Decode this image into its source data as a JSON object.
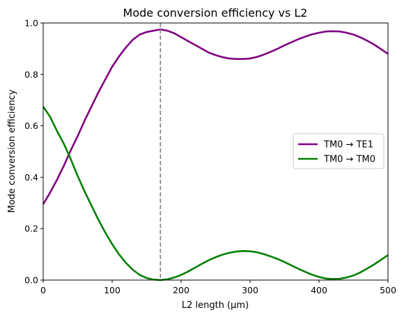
{
  "chart_data": {
    "type": "line",
    "title": "Mode conversion efficiency vs L2",
    "xlabel": "L2 length (μm)",
    "ylabel": "Mode conversion efficiency",
    "xlim": [
      0,
      500
    ],
    "ylim": [
      0,
      1.0
    ],
    "xticks": [
      "0",
      "100",
      "200",
      "300",
      "400",
      "500"
    ],
    "yticks": [
      "0.0",
      "0.2",
      "0.4",
      "0.6",
      "0.8",
      "1.0"
    ],
    "grid": false,
    "legend_position": "center-right",
    "vline": {
      "x": 170,
      "color": "#808080",
      "style": "dashed"
    },
    "series": [
      {
        "name": "TM0 → TE1",
        "color": "#800080",
        "x": [
          0,
          10,
          20,
          30,
          40,
          50,
          60,
          70,
          80,
          90,
          100,
          110,
          120,
          130,
          140,
          150,
          160,
          170,
          180,
          190,
          200,
          210,
          220,
          230,
          240,
          250,
          260,
          270,
          280,
          290,
          300,
          310,
          320,
          330,
          340,
          350,
          360,
          370,
          380,
          390,
          400,
          410,
          420,
          430,
          440,
          450,
          460,
          470,
          480,
          490,
          500
        ],
        "y": [
          0.295,
          0.34,
          0.39,
          0.445,
          0.505,
          0.56,
          0.62,
          0.675,
          0.73,
          0.78,
          0.83,
          0.87,
          0.905,
          0.935,
          0.955,
          0.965,
          0.97,
          0.975,
          0.97,
          0.96,
          0.945,
          0.93,
          0.915,
          0.9,
          0.885,
          0.875,
          0.867,
          0.862,
          0.86,
          0.86,
          0.862,
          0.868,
          0.877,
          0.888,
          0.9,
          0.913,
          0.925,
          0.937,
          0.947,
          0.956,
          0.962,
          0.967,
          0.968,
          0.967,
          0.962,
          0.955,
          0.944,
          0.931,
          0.916,
          0.898,
          0.88
        ]
      },
      {
        "name": "TM0 → TM0",
        "color": "#008000",
        "x": [
          0,
          10,
          20,
          30,
          40,
          50,
          60,
          70,
          80,
          90,
          100,
          110,
          120,
          130,
          140,
          150,
          160,
          170,
          180,
          190,
          200,
          210,
          220,
          230,
          240,
          250,
          260,
          270,
          280,
          290,
          300,
          310,
          320,
          330,
          340,
          350,
          360,
          370,
          380,
          390,
          400,
          410,
          420,
          430,
          440,
          450,
          460,
          470,
          480,
          490,
          500
        ],
        "y": [
          0.675,
          0.635,
          0.58,
          0.53,
          0.47,
          0.405,
          0.345,
          0.29,
          0.235,
          0.185,
          0.14,
          0.1,
          0.067,
          0.04,
          0.02,
          0.008,
          0.002,
          0.0,
          0.003,
          0.01,
          0.02,
          0.033,
          0.048,
          0.063,
          0.077,
          0.089,
          0.099,
          0.106,
          0.111,
          0.113,
          0.112,
          0.108,
          0.101,
          0.092,
          0.082,
          0.07,
          0.057,
          0.044,
          0.032,
          0.021,
          0.012,
          0.006,
          0.004,
          0.005,
          0.01,
          0.018,
          0.03,
          0.045,
          0.061,
          0.079,
          0.097
        ]
      }
    ]
  }
}
